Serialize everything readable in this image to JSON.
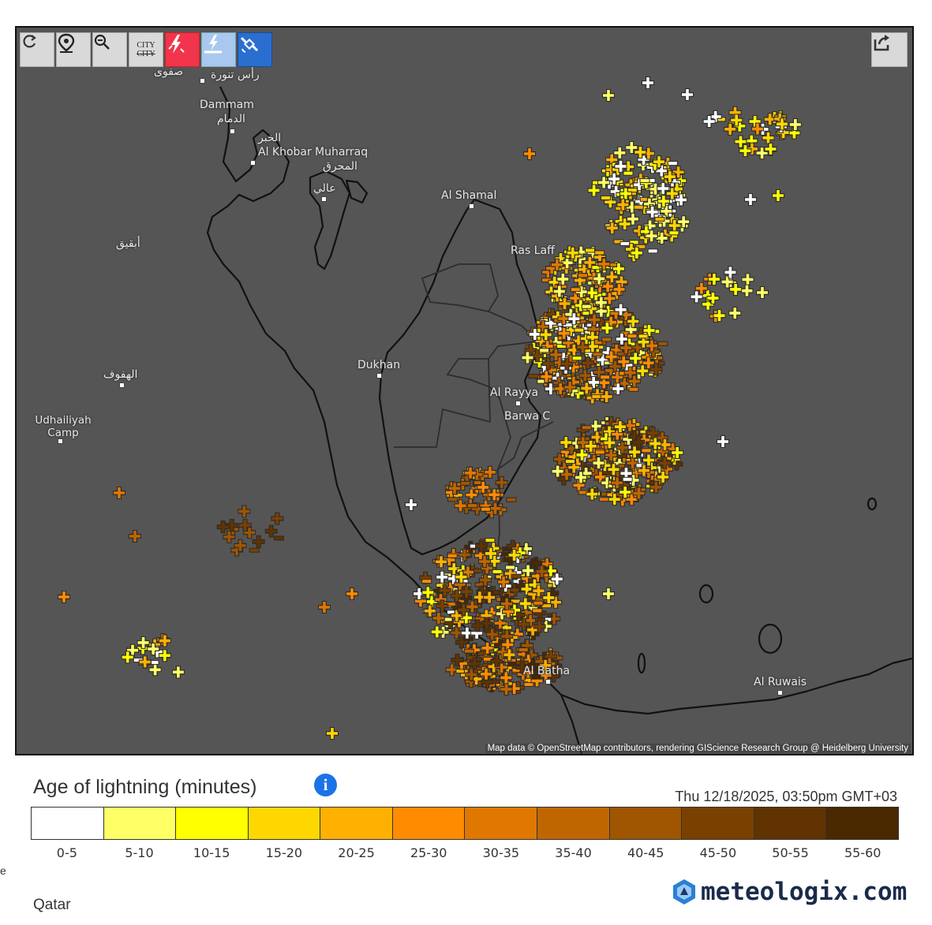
{
  "toolbar": {
    "buttons": [
      {
        "name": "refresh-icon",
        "label": ""
      },
      {
        "name": "location-pin-icon",
        "label": ""
      },
      {
        "name": "zoom-out-icon",
        "label": ""
      },
      {
        "name": "city-labels-icon",
        "label": "CITY"
      },
      {
        "name": "lightning-strike-icon",
        "label": ""
      },
      {
        "name": "lightning-ground-icon",
        "label": ""
      },
      {
        "name": "satellite-icon",
        "label": ""
      }
    ],
    "share_icon": "share-icon"
  },
  "map": {
    "places": [
      {
        "name": "Dammam",
        "label": "Dammam"
      },
      {
        "name": "Dammam-ar",
        "label": "الدمام"
      },
      {
        "name": "Al Khobar",
        "label": "Al Khobar"
      },
      {
        "name": "Al Khobar-ar",
        "label": "الخبر"
      },
      {
        "name": "Muharraq",
        "label": "Muharraq"
      },
      {
        "name": "Muharraq-ar",
        "label": "المحرق"
      },
      {
        "name": "Aali-ar",
        "label": "عالي"
      },
      {
        "name": "Safwa-ar",
        "label": "صفوى"
      },
      {
        "name": "Ras Tanura-ar",
        "label": "رأس تنورة"
      },
      {
        "name": "Abqaiq-ar",
        "label": "أبقيق"
      },
      {
        "name": "Hofuf-ar",
        "label": "الهفوف"
      },
      {
        "name": "Udhailiyah Camp",
        "label": "Udhailiyah Camp"
      },
      {
        "name": "Al Shamal",
        "label": "Al Shamal"
      },
      {
        "name": "Ras Laffan",
        "label": "Ras Laff"
      },
      {
        "name": "Dukhan",
        "label": "Dukhan"
      },
      {
        "name": "Al Rayyan",
        "label": "Al Rayya"
      },
      {
        "name": "Barwa",
        "label": "Barwa C"
      },
      {
        "name": "Al Batha",
        "label": "Al Batha"
      },
      {
        "name": "Al Ruwais",
        "label": "Al Ruwais"
      }
    ],
    "attribution": "Map data © OpenStreetMap contributors, rendering GIScience Research Group @ Heidelberg University"
  },
  "legend": {
    "title": "Age of lightning (minutes)",
    "info_icon": "info-icon",
    "timestamp": "Thu 12/18/2025, 03:50pm GMT+03",
    "bins": [
      {
        "label": "0-5",
        "color": "#ffffff"
      },
      {
        "label": "5-10",
        "color": "#ffff66"
      },
      {
        "label": "10-15",
        "color": "#ffff00"
      },
      {
        "label": "15-20",
        "color": "#ffd700"
      },
      {
        "label": "20-25",
        "color": "#ffb000"
      },
      {
        "label": "25-30",
        "color": "#ff8c00"
      },
      {
        "label": "30-35",
        "color": "#e07800"
      },
      {
        "label": "35-40",
        "color": "#c06600"
      },
      {
        "label": "40-45",
        "color": "#a05500"
      },
      {
        "label": "45-50",
        "color": "#7a4000"
      },
      {
        "label": "50-55",
        "color": "#603300"
      },
      {
        "label": "55-60",
        "color": "#4a2800"
      }
    ]
  },
  "logo": {
    "text": "meteologix.com",
    "icon": "meteologix-logo-icon"
  },
  "page_label": "Qatar",
  "edge_text": "e"
}
